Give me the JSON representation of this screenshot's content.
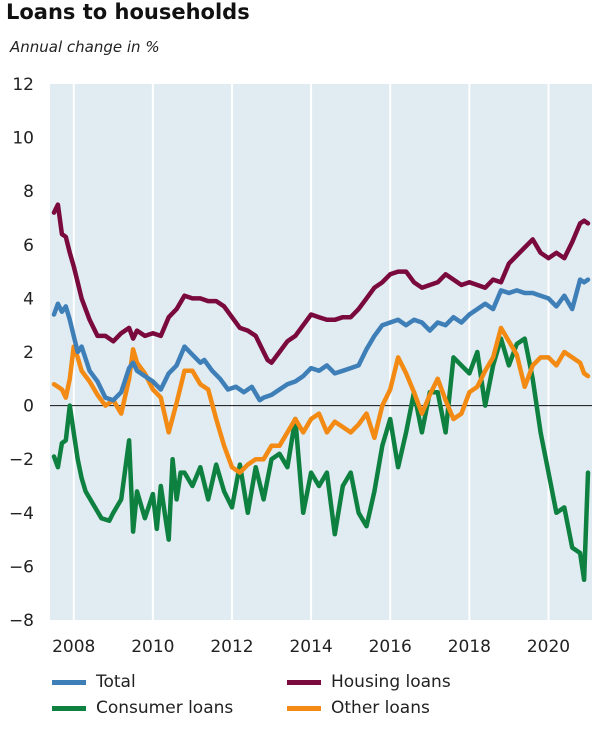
{
  "title": "Loans to households",
  "subtitle": "Annual change in %",
  "chart_data": {
    "type": "line",
    "title": "Loans to households",
    "subtitle": "Annual change in %",
    "xlim": [
      2007.4,
      2021.1
    ],
    "ylim": [
      -8,
      12
    ],
    "yticks": [
      12,
      10,
      8,
      6,
      4,
      2,
      0,
      -2,
      -4,
      -6,
      -8
    ],
    "xticks": [
      2008,
      2010,
      2012,
      2014,
      2016,
      2018,
      2020
    ],
    "grid": "vertical",
    "legend_placement": "bottom",
    "colors": {
      "Total": "#3f7fb8",
      "Housing loans": "#7a0a3d",
      "Consumer loans": "#0e8040",
      "Other loans": "#f28a13",
      "plot_bg": "#e0ebf2"
    },
    "series": [
      {
        "name": "Total",
        "color": "#3f7fb8",
        "x": [
          2007.5,
          2007.6,
          2007.7,
          2007.8,
          2007.9,
          2008.0,
          2008.1,
          2008.2,
          2008.4,
          2008.6,
          2008.8,
          2009.0,
          2009.2,
          2009.4,
          2009.5,
          2009.6,
          2009.8,
          2010.0,
          2010.2,
          2010.4,
          2010.6,
          2010.8,
          2011.0,
          2011.2,
          2011.3,
          2011.5,
          2011.7,
          2011.9,
          2012.1,
          2012.3,
          2012.5,
          2012.7,
          2012.8,
          2013.0,
          2013.2,
          2013.4,
          2013.6,
          2013.8,
          2014.0,
          2014.2,
          2014.4,
          2014.6,
          2014.8,
          2015.0,
          2015.2,
          2015.4,
          2015.6,
          2015.8,
          2016.0,
          2016.2,
          2016.4,
          2016.6,
          2016.8,
          2017.0,
          2017.2,
          2017.4,
          2017.6,
          2017.8,
          2018.0,
          2018.2,
          2018.4,
          2018.6,
          2018.8,
          2019.0,
          2019.2,
          2019.4,
          2019.6,
          2019.8,
          2020.0,
          2020.2,
          2020.4,
          2020.6,
          2020.8,
          2020.9,
          2021.0
        ],
        "y": [
          3.4,
          3.8,
          3.5,
          3.7,
          3.2,
          2.6,
          2.0,
          2.2,
          1.3,
          0.9,
          0.3,
          0.2,
          0.5,
          1.4,
          1.6,
          1.3,
          1.1,
          0.9,
          0.6,
          1.2,
          1.5,
          2.2,
          1.9,
          1.6,
          1.7,
          1.3,
          1.0,
          0.6,
          0.7,
          0.5,
          0.7,
          0.2,
          0.3,
          0.4,
          0.6,
          0.8,
          0.9,
          1.1,
          1.4,
          1.3,
          1.5,
          1.2,
          1.3,
          1.4,
          1.5,
          2.1,
          2.6,
          3.0,
          3.1,
          3.2,
          3.0,
          3.2,
          3.1,
          2.8,
          3.1,
          3.0,
          3.3,
          3.1,
          3.4,
          3.6,
          3.8,
          3.6,
          4.3,
          4.2,
          4.3,
          4.2,
          4.2,
          4.1,
          4.0,
          3.7,
          4.1,
          3.6,
          4.7,
          4.6,
          4.7
        ]
      },
      {
        "name": "Housing loans",
        "color": "#7a0a3d",
        "x": [
          2007.5,
          2007.6,
          2007.7,
          2007.8,
          2007.9,
          2008.0,
          2008.1,
          2008.2,
          2008.4,
          2008.6,
          2008.8,
          2009.0,
          2009.2,
          2009.4,
          2009.5,
          2009.6,
          2009.8,
          2010.0,
          2010.2,
          2010.4,
          2010.6,
          2010.8,
          2011.0,
          2011.2,
          2011.4,
          2011.6,
          2011.8,
          2012.0,
          2012.2,
          2012.4,
          2012.6,
          2012.8,
          2012.9,
          2013.0,
          2013.2,
          2013.4,
          2013.6,
          2013.8,
          2014.0,
          2014.2,
          2014.4,
          2014.6,
          2014.8,
          2015.0,
          2015.2,
          2015.4,
          2015.6,
          2015.8,
          2016.0,
          2016.2,
          2016.4,
          2016.6,
          2016.8,
          2017.0,
          2017.2,
          2017.4,
          2017.6,
          2017.8,
          2018.0,
          2018.2,
          2018.4,
          2018.6,
          2018.8,
          2019.0,
          2019.2,
          2019.4,
          2019.6,
          2019.8,
          2020.0,
          2020.2,
          2020.4,
          2020.6,
          2020.8,
          2020.9,
          2021.0
        ],
        "y": [
          7.2,
          7.5,
          6.4,
          6.3,
          5.7,
          5.2,
          4.6,
          4.0,
          3.2,
          2.6,
          2.6,
          2.4,
          2.7,
          2.9,
          2.5,
          2.8,
          2.6,
          2.7,
          2.6,
          3.3,
          3.6,
          4.1,
          4.0,
          4.0,
          3.9,
          3.9,
          3.7,
          3.3,
          2.9,
          2.8,
          2.6,
          2.0,
          1.7,
          1.6,
          2.0,
          2.4,
          2.6,
          3.0,
          3.4,
          3.3,
          3.2,
          3.2,
          3.3,
          3.3,
          3.6,
          4.0,
          4.4,
          4.6,
          4.9,
          5.0,
          5.0,
          4.6,
          4.4,
          4.5,
          4.6,
          4.9,
          4.7,
          4.5,
          4.6,
          4.5,
          4.4,
          4.7,
          4.6,
          5.3,
          5.6,
          5.9,
          6.2,
          5.7,
          5.5,
          5.7,
          5.5,
          6.1,
          6.8,
          6.9,
          6.8
        ]
      },
      {
        "name": "Consumer loans",
        "color": "#0e8040",
        "x": [
          2007.5,
          2007.6,
          2007.7,
          2007.8,
          2007.9,
          2008.0,
          2008.1,
          2008.2,
          2008.3,
          2008.5,
          2008.7,
          2008.9,
          2009.0,
          2009.2,
          2009.4,
          2009.5,
          2009.6,
          2009.8,
          2010.0,
          2010.1,
          2010.2,
          2010.3,
          2010.4,
          2010.5,
          2010.6,
          2010.7,
          2010.8,
          2011.0,
          2011.2,
          2011.4,
          2011.6,
          2011.8,
          2012.0,
          2012.2,
          2012.4,
          2012.6,
          2012.8,
          2013.0,
          2013.2,
          2013.4,
          2013.6,
          2013.8,
          2014.0,
          2014.2,
          2014.4,
          2014.6,
          2014.8,
          2015.0,
          2015.2,
          2015.4,
          2015.6,
          2015.8,
          2016.0,
          2016.2,
          2016.4,
          2016.6,
          2016.8,
          2017.0,
          2017.2,
          2017.4,
          2017.6,
          2017.8,
          2018.0,
          2018.2,
          2018.4,
          2018.6,
          2018.8,
          2019.0,
          2019.2,
          2019.4,
          2019.6,
          2019.8,
          2020.0,
          2020.2,
          2020.4,
          2020.6,
          2020.8,
          2020.9,
          2021.0
        ],
        "y": [
          -1.9,
          -2.3,
          -1.4,
          -1.3,
          0.0,
          -1.0,
          -2.0,
          -2.7,
          -3.2,
          -3.7,
          -4.2,
          -4.3,
          -4.0,
          -3.5,
          -1.3,
          -4.7,
          -3.2,
          -4.2,
          -3.3,
          -4.6,
          -3.0,
          -4.0,
          -5.0,
          -2.0,
          -3.5,
          -2.5,
          -2.5,
          -3.0,
          -2.3,
          -3.5,
          -2.2,
          -3.2,
          -3.8,
          -2.2,
          -4.0,
          -2.3,
          -3.5,
          -2.0,
          -1.8,
          -2.3,
          -0.5,
          -4.0,
          -2.5,
          -3.0,
          -2.5,
          -4.8,
          -3.0,
          -2.5,
          -4.0,
          -4.5,
          -3.2,
          -1.5,
          -0.5,
          -2.3,
          -1.0,
          0.5,
          -1.0,
          0.5,
          0.5,
          -1.0,
          1.8,
          1.5,
          1.2,
          2.0,
          0.0,
          1.5,
          2.5,
          1.5,
          2.3,
          2.5,
          1.0,
          -1.0,
          -2.5,
          -4.0,
          -3.8,
          -5.3,
          -5.5,
          -6.5,
          -2.5
        ]
      },
      {
        "name": "Other loans",
        "color": "#f28a13",
        "x": [
          2007.5,
          2007.6,
          2007.7,
          2007.8,
          2007.9,
          2008.0,
          2008.1,
          2008.2,
          2008.4,
          2008.6,
          2008.8,
          2009.0,
          2009.2,
          2009.4,
          2009.5,
          2009.6,
          2009.8,
          2010.0,
          2010.2,
          2010.4,
          2010.6,
          2010.8,
          2011.0,
          2011.2,
          2011.4,
          2011.6,
          2011.8,
          2012.0,
          2012.2,
          2012.4,
          2012.6,
          2012.8,
          2013.0,
          2013.2,
          2013.4,
          2013.6,
          2013.8,
          2014.0,
          2014.2,
          2014.4,
          2014.6,
          2014.8,
          2015.0,
          2015.2,
          2015.4,
          2015.6,
          2015.8,
          2016.0,
          2016.2,
          2016.4,
          2016.6,
          2016.8,
          2017.0,
          2017.2,
          2017.4,
          2017.6,
          2017.8,
          2018.0,
          2018.2,
          2018.4,
          2018.6,
          2018.8,
          2019.0,
          2019.2,
          2019.4,
          2019.6,
          2019.8,
          2020.0,
          2020.2,
          2020.4,
          2020.6,
          2020.8,
          2020.9,
          2021.0
        ],
        "y": [
          0.8,
          0.7,
          0.6,
          0.3,
          1.0,
          2.2,
          1.8,
          1.3,
          0.9,
          0.4,
          0.0,
          0.2,
          -0.3,
          1.0,
          2.1,
          1.6,
          1.2,
          0.6,
          0.3,
          -1.0,
          0.1,
          1.3,
          1.3,
          0.8,
          0.6,
          -0.5,
          -1.5,
          -2.3,
          -2.5,
          -2.2,
          -2.0,
          -2.0,
          -1.5,
          -1.5,
          -1.0,
          -0.5,
          -1.0,
          -0.5,
          -0.3,
          -1.0,
          -0.6,
          -0.8,
          -1.0,
          -0.7,
          -0.3,
          -1.2,
          0.0,
          0.6,
          1.8,
          1.2,
          0.5,
          -0.3,
          0.4,
          1.0,
          0.2,
          -0.5,
          -0.3,
          0.5,
          0.7,
          1.3,
          1.8,
          2.9,
          2.4,
          1.9,
          0.7,
          1.5,
          1.8,
          1.8,
          1.5,
          2.0,
          1.8,
          1.6,
          1.2,
          1.1
        ]
      }
    ]
  }
}
